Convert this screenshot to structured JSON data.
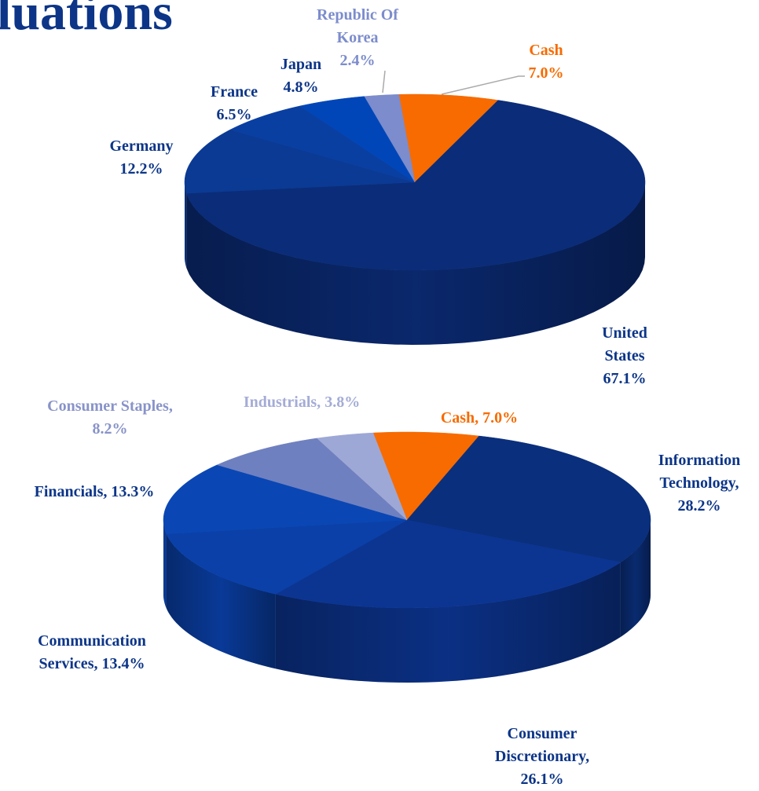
{
  "title": "luations",
  "chart_data": [
    {
      "type": "pie3d",
      "categories": [
        "Cash",
        "United States",
        "Germany",
        "France",
        "Japan",
        "Republic Of Korea"
      ],
      "values": [
        7.0,
        67.1,
        12.2,
        6.5,
        4.8,
        2.4
      ],
      "value_labels": [
        "7.0%",
        "67.1%",
        "12.2%",
        "6.5%",
        "4.8%",
        "2.4%"
      ],
      "colors": [
        "#f76b00",
        "#0b2c78",
        "#0b3a94",
        "#0a3fa2",
        "#0046b8",
        "#7c8ccc"
      ],
      "label_colors": [
        "#f76b00",
        "#0c3588",
        "#0c3588",
        "#0c3588",
        "#0c3588",
        "#7c8ccc"
      ]
    },
    {
      "type": "pie3d",
      "categories": [
        "Cash,",
        "Information Technology,",
        "Consumer Discretionary,",
        "Communication Services,",
        "Financials,",
        "Consumer Staples,",
        "Industrials,"
      ],
      "values": [
        7.0,
        28.2,
        26.1,
        13.4,
        13.3,
        8.2,
        3.8
      ],
      "value_labels": [
        "7.0%",
        "28.2%",
        "26.1%",
        "13.4%",
        "13.3%",
        "8.2%",
        "3.8%"
      ],
      "colors": [
        "#f76b00",
        "#0a2f7c",
        "#0c3592",
        "#0a40a8",
        "#0a47b4",
        "#6f80c0",
        "#9ea8d6"
      ],
      "label_colors": [
        "#f76b00",
        "#0c3588",
        "#0c3588",
        "#0c3588",
        "#0c3588",
        "#8893c9",
        "#a4acd6"
      ]
    }
  ]
}
